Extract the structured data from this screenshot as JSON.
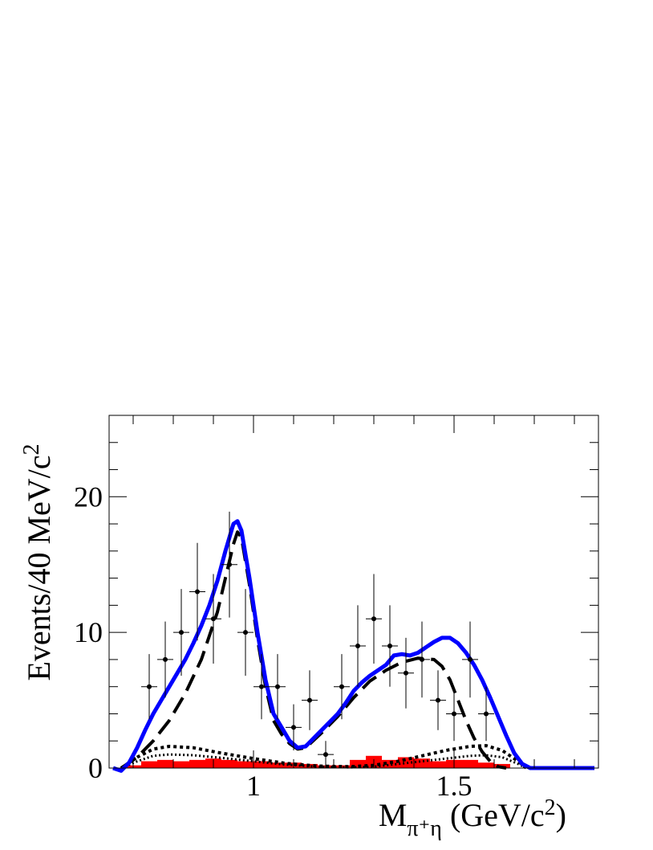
{
  "chart_data": {
    "type": "line",
    "ylabel": "Events/40 MeV/c",
    "ylabel_sup": "2",
    "xlabel_main": "M",
    "xlabel_sub": "π⁺η",
    "xlabel_unit": " (GeV/c",
    "xlabel_unit_sup": "2",
    "xlabel_unit_close": ")",
    "xlim": [
      0.64,
      1.86
    ],
    "ylim": [
      0,
      26
    ],
    "xticks": [
      {
        "value": 1,
        "label": "1"
      },
      {
        "value": 1.5,
        "label": "1.5"
      }
    ],
    "yticks": [
      {
        "value": 0,
        "label": "0"
      },
      {
        "value": 10,
        "label": "10"
      },
      {
        "value": 20,
        "label": "20"
      }
    ],
    "colors": {
      "total": "#0000ff",
      "signal": "#000000",
      "background": "#ff0000",
      "data": "#000000"
    },
    "data_points": [
      {
        "x": 0.74,
        "y": 6,
        "yerr": 2.4
      },
      {
        "x": 0.78,
        "y": 8,
        "yerr": 2.8
      },
      {
        "x": 0.82,
        "y": 10,
        "yerr": 3.2
      },
      {
        "x": 0.86,
        "y": 13,
        "yerr": 3.6
      },
      {
        "x": 0.9,
        "y": 11,
        "yerr": 3.3
      },
      {
        "x": 0.94,
        "y": 15,
        "yerr": 3.9
      },
      {
        "x": 0.98,
        "y": 10,
        "yerr": 3.2
      },
      {
        "x": 1.02,
        "y": 6,
        "yerr": 2.4
      },
      {
        "x": 1.06,
        "y": 6,
        "yerr": 2.4
      },
      {
        "x": 1.1,
        "y": 3,
        "yerr": 1.7
      },
      {
        "x": 1.14,
        "y": 5,
        "yerr": 2.2
      },
      {
        "x": 1.18,
        "y": 1,
        "yerr": 1.0
      },
      {
        "x": 1.22,
        "y": 6,
        "yerr": 2.4
      },
      {
        "x": 1.26,
        "y": 9,
        "yerr": 3.0
      },
      {
        "x": 1.3,
        "y": 11,
        "yerr": 3.3
      },
      {
        "x": 1.34,
        "y": 9,
        "yerr": 3.0
      },
      {
        "x": 1.38,
        "y": 7,
        "yerr": 2.6
      },
      {
        "x": 1.42,
        "y": 8,
        "yerr": 2.8
      },
      {
        "x": 1.46,
        "y": 5,
        "yerr": 2.2
      },
      {
        "x": 1.5,
        "y": 4,
        "yerr": 2.0
      },
      {
        "x": 1.54,
        "y": 8,
        "yerr": 2.8
      },
      {
        "x": 1.58,
        "y": 4,
        "yerr": 2.0
      }
    ],
    "xerr": 0.02,
    "background_hist": {
      "bin_edges": [
        0.68,
        0.72,
        0.76,
        0.8,
        0.84,
        0.88,
        0.92,
        0.96,
        1.0,
        1.04,
        1.08,
        1.12,
        1.16,
        1.2,
        1.24,
        1.28,
        1.32,
        1.36,
        1.4,
        1.44,
        1.48,
        1.52,
        1.56,
        1.6,
        1.64
      ],
      "values": [
        0.2,
        0.5,
        0.6,
        0.5,
        0.6,
        0.7,
        0.6,
        0.5,
        0.5,
        0.4,
        0.4,
        0.3,
        0.2,
        0.2,
        0.6,
        0.9,
        0.6,
        0.8,
        0.7,
        0.5,
        0.6,
        0.6,
        0.4,
        0.3
      ]
    },
    "total_fit": {
      "x": [
        0.65,
        0.67,
        0.69,
        0.71,
        0.73,
        0.75,
        0.77,
        0.79,
        0.81,
        0.83,
        0.85,
        0.87,
        0.89,
        0.91,
        0.93,
        0.95,
        0.96,
        0.97,
        0.99,
        1.01,
        1.03,
        1.05,
        1.07,
        1.09,
        1.11,
        1.13,
        1.15,
        1.17,
        1.19,
        1.21,
        1.23,
        1.25,
        1.27,
        1.29,
        1.31,
        1.33,
        1.35,
        1.37,
        1.39,
        1.41,
        1.43,
        1.45,
        1.47,
        1.49,
        1.51,
        1.53,
        1.55,
        1.57,
        1.59,
        1.61,
        1.63,
        1.65,
        1.67,
        1.69,
        1.71,
        1.75,
        1.8,
        1.85
      ],
      "y": [
        0,
        -0.2,
        0.4,
        1.5,
        2.8,
        4,
        5,
        6,
        7,
        8,
        9.2,
        10.5,
        12,
        13.8,
        16,
        18,
        18.2,
        17.5,
        14,
        10,
        6.5,
        4,
        3,
        2,
        1.5,
        1.6,
        2.2,
        2.8,
        3.4,
        4,
        4.8,
        5.7,
        6.3,
        6.8,
        7.2,
        7.6,
        8.3,
        8.4,
        8.3,
        8.5,
        8.9,
        9.3,
        9.6,
        9.6,
        9.2,
        8.5,
        7.6,
        6.5,
        5.2,
        3.8,
        2.4,
        1.1,
        0.3,
        0,
        0,
        0,
        0,
        0
      ]
    },
    "signal_fit": {
      "x": [
        0.67,
        0.71,
        0.75,
        0.79,
        0.83,
        0.87,
        0.91,
        0.93,
        0.95,
        0.96,
        0.97,
        0.99,
        1.01,
        1.03,
        1.05,
        1.07,
        1.09,
        1.11,
        1.13,
        1.17,
        1.21,
        1.25,
        1.29,
        1.33,
        1.37,
        1.41,
        1.45,
        1.47,
        1.49,
        1.51,
        1.53,
        1.55,
        1.57,
        1.59,
        1.61,
        1.63
      ],
      "y": [
        0,
        0.8,
        2,
        3.5,
        5.5,
        8,
        11.5,
        14,
        16.5,
        17.4,
        17,
        13.5,
        9.5,
        6,
        3.5,
        2.5,
        1.8,
        1.4,
        1.5,
        2.6,
        3.8,
        5.2,
        6.4,
        7.2,
        7.8,
        8.1,
        8,
        7.5,
        6.5,
        5,
        3.5,
        2.2,
        1.2,
        0.5,
        0.1,
        0
      ]
    },
    "bkg_dotted_1": {
      "x": [
        0.67,
        0.71,
        0.75,
        0.79,
        0.85,
        0.92,
        1.0,
        1.08,
        1.16,
        1.24,
        1.3,
        1.36,
        1.42,
        1.48,
        1.54,
        1.58,
        1.62,
        1.66,
        1.68
      ],
      "y": [
        0,
        0.8,
        1.4,
        1.6,
        1.5,
        1.1,
        0.7,
        0.35,
        0.15,
        0.1,
        0.2,
        0.5,
        0.9,
        1.3,
        1.6,
        1.65,
        1.3,
        0.5,
        0
      ]
    },
    "bkg_dotted_2": {
      "x": [
        0.67,
        0.71,
        0.75,
        0.79,
        0.85,
        0.92,
        1.0,
        1.08,
        1.16,
        1.24,
        1.3,
        1.36,
        1.42,
        1.48,
        1.54,
        1.58,
        1.62,
        1.66,
        1.68
      ],
      "y": [
        0,
        0.5,
        0.9,
        1.0,
        0.95,
        0.75,
        0.5,
        0.25,
        0.1,
        0.05,
        0.1,
        0.3,
        0.5,
        0.7,
        0.9,
        0.95,
        0.8,
        0.3,
        0
      ]
    }
  }
}
